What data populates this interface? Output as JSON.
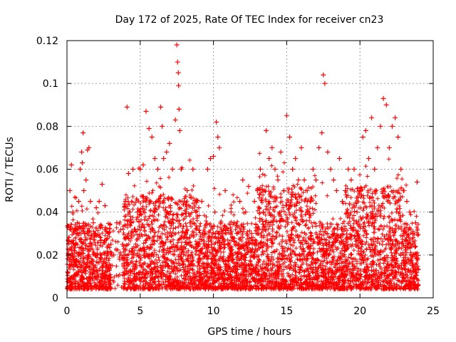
{
  "chart_data": {
    "type": "scatter",
    "title": "Day 172 of 2025, Rate Of TEC Index for receiver cn23",
    "xlabel": "GPS time / hours",
    "ylabel": "ROTI / TECUs",
    "xlim": [
      0,
      25
    ],
    "ylim": [
      0,
      0.12
    ],
    "x_ticks": [
      0,
      5,
      10,
      15,
      20,
      25
    ],
    "x_tick_labels": [
      "0",
      "5",
      "10",
      "15",
      "20",
      "25"
    ],
    "y_ticks": [
      0,
      0.02,
      0.04,
      0.06,
      0.08,
      0.1,
      0.12
    ],
    "y_tick_labels": [
      "0",
      "0.02",
      "0.04",
      "0.06",
      "0.08",
      "0.1",
      "0.12"
    ],
    "grid": true,
    "marker": "+",
    "color": "#ff0000",
    "series": [
      {
        "name": "ROTI",
        "x": [
          0.05,
          0.1,
          0.15,
          0.2,
          0.25,
          0.3,
          0.35,
          0.4,
          0.45,
          0.5,
          0.6,
          0.7,
          0.8,
          0.9,
          1.0,
          1.05,
          1.1,
          1.15,
          1.2,
          1.3,
          1.4,
          1.5,
          1.6,
          1.7,
          1.8,
          1.9,
          2.0,
          2.1,
          2.2,
          2.4,
          2.6,
          2.8,
          3.0,
          3.2,
          3.4,
          3.6,
          3.8,
          4.0,
          4.1,
          4.2,
          4.3,
          4.4,
          4.5,
          4.6,
          4.8,
          5.0,
          5.2,
          5.4,
          5.6,
          5.8,
          6.0,
          6.2,
          6.4,
          6.5,
          6.6,
          6.8,
          7.0,
          7.2,
          7.4,
          7.5,
          7.55,
          7.6,
          7.62,
          7.65,
          7.7,
          7.8,
          8.0,
          8.2,
          8.4,
          8.6,
          8.8,
          9.0,
          9.2,
          9.4,
          9.6,
          9.8,
          10.0,
          10.1,
          10.2,
          10.3,
          10.4,
          10.5,
          10.6,
          10.8,
          11.0,
          11.2,
          11.4,
          11.6,
          11.8,
          12.0,
          12.2,
          12.4,
          12.6,
          12.8,
          13.0,
          13.2,
          13.4,
          13.6,
          13.8,
          14.0,
          14.2,
          14.4,
          14.6,
          14.8,
          15.0,
          15.2,
          15.4,
          15.6,
          15.8,
          16.0,
          16.2,
          16.4,
          16.6,
          16.8,
          17.0,
          17.2,
          17.4,
          17.5,
          17.6,
          17.8,
          18.0,
          18.2,
          18.4,
          18.6,
          18.8,
          19.0,
          19.2,
          19.4,
          19.6,
          19.8,
          20.0,
          20.2,
          20.4,
          20.6,
          20.8,
          21.0,
          21.2,
          21.4,
          21.6,
          21.8,
          22.0,
          22.2,
          22.4,
          22.6,
          22.8,
          23.0,
          23.2,
          23.4,
          23.6,
          23.8,
          23.9
        ],
        "y": [
          0.012,
          0.02,
          0.018,
          0.05,
          0.033,
          0.062,
          0.015,
          0.04,
          0.018,
          0.01,
          0.025,
          0.035,
          0.045,
          0.06,
          0.068,
          0.063,
          0.077,
          0.05,
          0.03,
          0.055,
          0.069,
          0.07,
          0.045,
          0.025,
          0.035,
          0.03,
          0.042,
          0.02,
          0.045,
          0.053,
          0.043,
          0.03,
          0.025,
          0.02,
          0.035,
          0.018,
          0.025,
          0.045,
          0.089,
          0.058,
          0.04,
          0.035,
          0.06,
          0.032,
          0.04,
          0.06,
          0.062,
          0.087,
          0.079,
          0.075,
          0.065,
          0.06,
          0.089,
          0.08,
          0.065,
          0.068,
          0.072,
          0.06,
          0.083,
          0.118,
          0.11,
          0.105,
          0.099,
          0.088,
          0.078,
          0.06,
          0.045,
          0.05,
          0.035,
          0.06,
          0.04,
          0.042,
          0.045,
          0.03,
          0.06,
          0.065,
          0.066,
          0.04,
          0.082,
          0.075,
          0.07,
          0.035,
          0.03,
          0.05,
          0.025,
          0.04,
          0.035,
          0.03,
          0.045,
          0.055,
          0.04,
          0.052,
          0.03,
          0.045,
          0.05,
          0.06,
          0.04,
          0.078,
          0.065,
          0.07,
          0.06,
          0.055,
          0.068,
          0.05,
          0.085,
          0.075,
          0.06,
          0.065,
          0.055,
          0.07,
          0.055,
          0.05,
          0.045,
          0.06,
          0.055,
          0.07,
          0.077,
          0.104,
          0.1,
          0.068,
          0.06,
          0.055,
          0.05,
          0.065,
          0.045,
          0.05,
          0.06,
          0.055,
          0.06,
          0.04,
          0.05,
          0.075,
          0.078,
          0.065,
          0.084,
          0.06,
          0.07,
          0.08,
          0.093,
          0.09,
          0.07,
          0.08,
          0.084,
          0.075,
          0.06,
          0.05,
          0.045,
          0.04,
          0.03,
          0.035,
          0.054
        ]
      }
    ]
  }
}
